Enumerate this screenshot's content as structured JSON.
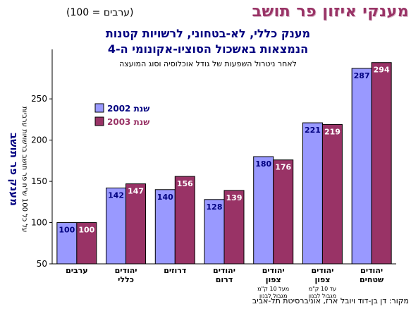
{
  "header": {
    "title": "מענקי איזון פר תושב",
    "title_note": "(ערבים = 100)",
    "subtitle_line1": "מענק כללי, לא-בטחוני, לרשויות קטנות",
    "subtitle_line2": "הנמצאות באשכול הסוציו-אקונומי ה-4",
    "note": "לאחר ניטרול השפעות של גודל אוכלוסיה וסוג המועצה"
  },
  "source": "מקור: דן בן-דוד ויובל ארז, אוניברסיטת תל-אביב",
  "colors": {
    "s2002": "#9999ff",
    "s2003": "#993366",
    "title": "#993366",
    "subtitle": "#000080",
    "value_label": "#000080"
  },
  "chart_data": {
    "type": "bar",
    "ylabel": "מענק פר תושב",
    "ylabel_secondary": "על כל 100 ש\"ח פר תושב ברשויות ערביות",
    "ylim": [
      50,
      310
    ],
    "yticks": [
      50,
      100,
      150,
      200,
      250
    ],
    "grid": false,
    "legend_position": "top-left",
    "categories": [
      {
        "lines": [
          "ערבים"
        ],
        "sub": []
      },
      {
        "lines": [
          "יהודים",
          "כללי"
        ],
        "sub": []
      },
      {
        "lines": [
          "דרוזים"
        ],
        "sub": []
      },
      {
        "lines": [
          "יהודים",
          "דרום"
        ],
        "sub": []
      },
      {
        "lines": [
          "יהודים",
          "צפון"
        ],
        "sub": [
          "מעל 10 ק\"מ",
          "מגבול לבנון"
        ]
      },
      {
        "lines": [
          "יהודים",
          "צפון"
        ],
        "sub": [
          "עד 10 ק\"מ",
          "מגבול לבנון"
        ]
      },
      {
        "lines": [
          "יהודים",
          "שטחים"
        ],
        "sub": []
      }
    ],
    "series": [
      {
        "name": "שנת 2002",
        "values": [
          100,
          142,
          140,
          128,
          180,
          221,
          287
        ]
      },
      {
        "name": "שנת 2003",
        "values": [
          100,
          147,
          156,
          139,
          176,
          219,
          294
        ]
      }
    ]
  }
}
